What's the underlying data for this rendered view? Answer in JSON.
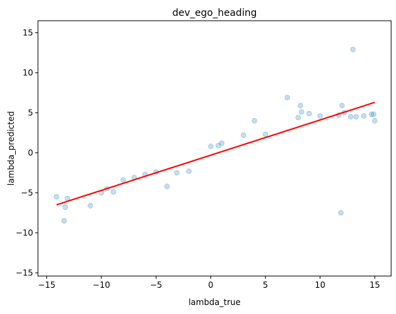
{
  "chart_data": {
    "type": "scatter",
    "title": "dev_ego_heading",
    "xlabel": "lambda_true",
    "ylabel": "lambda_predicted",
    "xlim": [
      -15.8,
      16.5
    ],
    "ylim": [
      -15.4,
      16.5
    ],
    "xticks": [
      -15,
      -10,
      -5,
      0,
      5,
      10,
      15
    ],
    "yticks": [
      -15,
      -10,
      -5,
      0,
      5,
      10,
      15
    ],
    "grid": false,
    "legend": "none",
    "scatter_color": "#1f77b4",
    "scatter_alpha": 0.25,
    "line_color": "#ff0000",
    "points": [
      {
        "x": -14.1,
        "y": -5.5
      },
      {
        "x": -13.4,
        "y": -8.5
      },
      {
        "x": -13.3,
        "y": -6.8
      },
      {
        "x": -13.1,
        "y": -5.7
      },
      {
        "x": -11.0,
        "y": -6.6
      },
      {
        "x": -10.0,
        "y": -5.0
      },
      {
        "x": -9.5,
        "y": -4.5
      },
      {
        "x": -8.9,
        "y": -4.9
      },
      {
        "x": -8.0,
        "y": -3.4
      },
      {
        "x": -7.0,
        "y": -3.1
      },
      {
        "x": -6.0,
        "y": -2.7
      },
      {
        "x": -5.0,
        "y": -2.4
      },
      {
        "x": -4.0,
        "y": -4.2
      },
      {
        "x": -3.1,
        "y": -2.5
      },
      {
        "x": -2.0,
        "y": -2.3
      },
      {
        "x": 0.0,
        "y": 0.8
      },
      {
        "x": 0.7,
        "y": 0.9
      },
      {
        "x": 1.0,
        "y": 1.2
      },
      {
        "x": 3.0,
        "y": 2.2
      },
      {
        "x": 4.0,
        "y": 4.0
      },
      {
        "x": 5.0,
        "y": 2.3
      },
      {
        "x": 7.0,
        "y": 6.9
      },
      {
        "x": 8.0,
        "y": 4.4
      },
      {
        "x": 8.2,
        "y": 5.9
      },
      {
        "x": 8.3,
        "y": 5.1
      },
      {
        "x": 9.0,
        "y": 4.9
      },
      {
        "x": 10.0,
        "y": 4.6
      },
      {
        "x": 11.7,
        "y": 4.7
      },
      {
        "x": 11.9,
        "y": -7.5
      },
      {
        "x": 12.0,
        "y": 5.9
      },
      {
        "x": 12.2,
        "y": 5.0
      },
      {
        "x": 12.8,
        "y": 4.5
      },
      {
        "x": 13.0,
        "y": 12.9
      },
      {
        "x": 13.3,
        "y": 4.5
      },
      {
        "x": 14.0,
        "y": 4.6
      },
      {
        "x": 14.7,
        "y": 4.8
      },
      {
        "x": 14.9,
        "y": 4.8
      },
      {
        "x": 15.0,
        "y": 4.0
      }
    ],
    "fit_line": {
      "x": [
        -14.1,
        15.0
      ],
      "y": [
        -6.5,
        6.3
      ]
    }
  }
}
